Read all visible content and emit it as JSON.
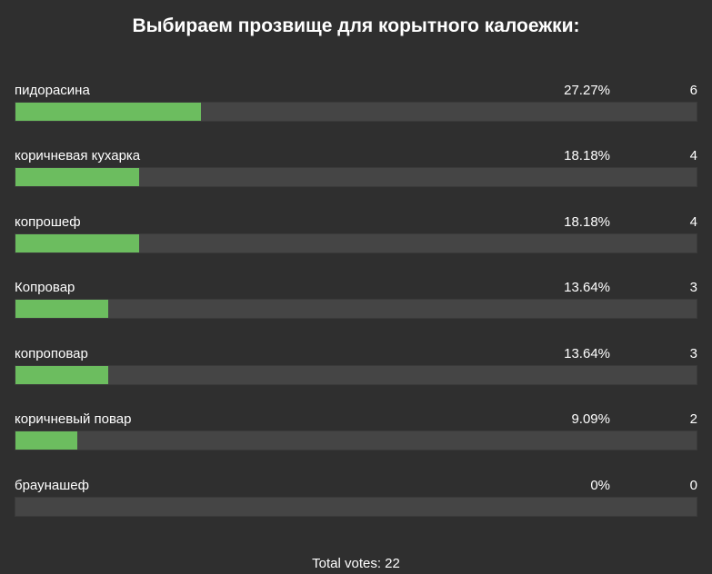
{
  "poll": {
    "title": "Выбираем прозвище для корытного калоежки:",
    "bar_color": "#6cbd5f",
    "track_color": "#454545",
    "options": [
      {
        "label": "пидорасина",
        "percent": "27.27%",
        "count": "6",
        "share": 0.2727
      },
      {
        "label": "коричневая кухарка",
        "percent": "18.18%",
        "count": "4",
        "share": 0.1818
      },
      {
        "label": "копрошеф",
        "percent": "18.18%",
        "count": "4",
        "share": 0.1818
      },
      {
        "label": "Копровар",
        "percent": "13.64%",
        "count": "3",
        "share": 0.1364
      },
      {
        "label": "копроповар",
        "percent": "13.64%",
        "count": "3",
        "share": 0.1364
      },
      {
        "label": "коричневый повар",
        "percent": "9.09%",
        "count": "2",
        "share": 0.0909
      },
      {
        "label": "браунашеф",
        "percent": "0%",
        "count": "0",
        "share": 0
      }
    ],
    "total_text": "Total votes: 22"
  }
}
